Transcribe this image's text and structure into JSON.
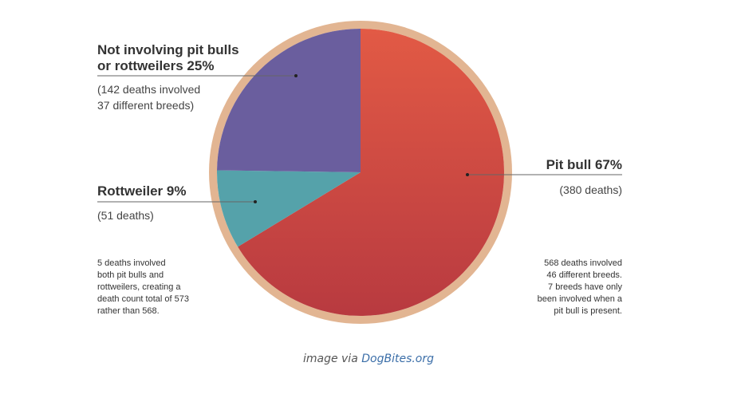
{
  "chart_data": {
    "type": "pie",
    "slices": [
      {
        "label": "Pit bull",
        "percent": 67,
        "value": 380,
        "detail": "(380 deaths)",
        "color": "#d44a43"
      },
      {
        "label": "Rottweiler",
        "percent": 9,
        "value": 51,
        "detail": "(51 deaths)",
        "color": "#55a2aa"
      },
      {
        "label": "Not involving pit bulls or rottweilers",
        "percent": 25,
        "value": 142,
        "detail": "(142 deaths involved 37 different breeds)",
        "color": "#6a5e9e"
      }
    ],
    "ring_color": "#e2b592"
  },
  "labels": {
    "other_line1": "Not involving pit bulls",
    "other_line2": "or rottweilers 25%",
    "other_sub1": "(142 deaths involved",
    "other_sub2": "37 different breeds)",
    "rott_title": "Rottweiler 9%",
    "rott_sub": "(51 deaths)",
    "pit_title": "Pit bull 67%",
    "pit_sub": "(380 deaths)"
  },
  "notes": {
    "left": [
      "5 deaths involved",
      "both pit bulls and",
      "rottweilers, creating a",
      "death count total of 573",
      "rather than 568."
    ],
    "right": [
      "568 deaths involved",
      "46 different breeds.",
      "7 breeds have only",
      "been involved when a",
      "pit bull is present."
    ]
  },
  "caption": {
    "prefix": "image via ",
    "link": "DogBites.org"
  }
}
